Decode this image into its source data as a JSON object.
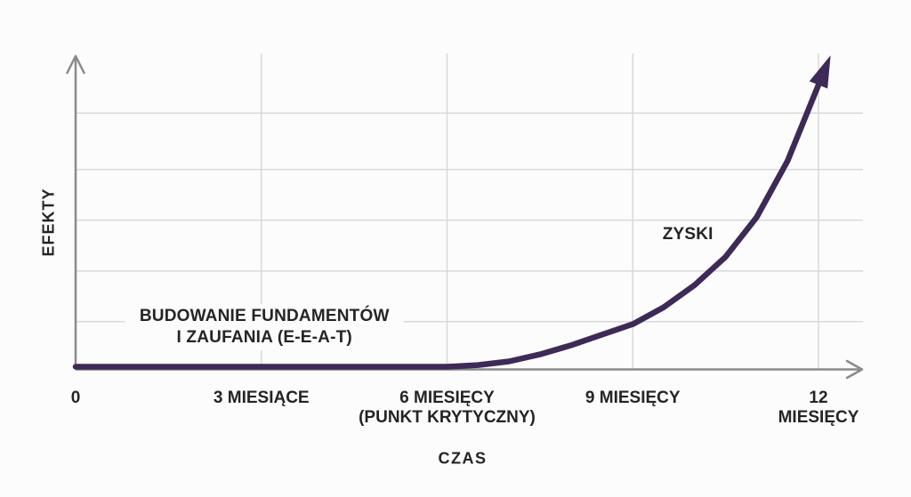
{
  "colors": {
    "background": "#fcfcfc",
    "curve": "#3d2a57",
    "grid": "#d9d9d9",
    "axis": "#8a8a8a",
    "text": "#242424"
  },
  "chart_data": {
    "type": "line",
    "title": "",
    "xlabel": "CZAS",
    "ylabel": "EFEKTY",
    "x_unit": "months",
    "x_range": [
      0,
      12
    ],
    "y_range": [
      0,
      100
    ],
    "grid": true,
    "legend": "none",
    "x_ticks": [
      {
        "month": 0,
        "label": "0",
        "gridline": false
      },
      {
        "month": 3,
        "label": "3 MIESIĄCE",
        "gridline": true
      },
      {
        "month": 6,
        "label": "6 MIESIĘCY\n(PUNKT KRYTYCZNY)",
        "gridline": true
      },
      {
        "month": 9,
        "label": "9 MIESIĘCY",
        "gridline": true
      },
      {
        "month": 12,
        "label": "12 MIESIĘCY",
        "gridline": true
      }
    ],
    "y_gridline_values": [
      16,
      34,
      52,
      70,
      90
    ],
    "series": [
      {
        "name": "ZYSKI",
        "x": [
          0,
          0.5,
          1,
          1.5,
          2,
          2.5,
          3,
          3.5,
          4,
          4.5,
          5,
          5.5,
          6,
          6.5,
          7,
          7.5,
          8,
          8.5,
          9,
          9.5,
          10,
          10.5,
          11,
          11.5,
          12
        ],
        "values": [
          0,
          0,
          0,
          0,
          0,
          0,
          0,
          0,
          0,
          0,
          0,
          0,
          0,
          0.6,
          1.9,
          4.4,
          7.6,
          11.4,
          15.1,
          21.1,
          29,
          39,
          53,
          73,
          100
        ]
      }
    ],
    "annotations": [
      {
        "id": "foundation-note",
        "text": "BUDOWANIE FUNDAMENTÓW\nI ZAUFANIA (E-E-A-T)",
        "x_month": 3.05,
        "y_value": 14,
        "boxed": true
      },
      {
        "id": "series-label",
        "text": "ZYSKI",
        "x_month": 9.89,
        "y_value": 47,
        "boxed": false
      }
    ]
  }
}
